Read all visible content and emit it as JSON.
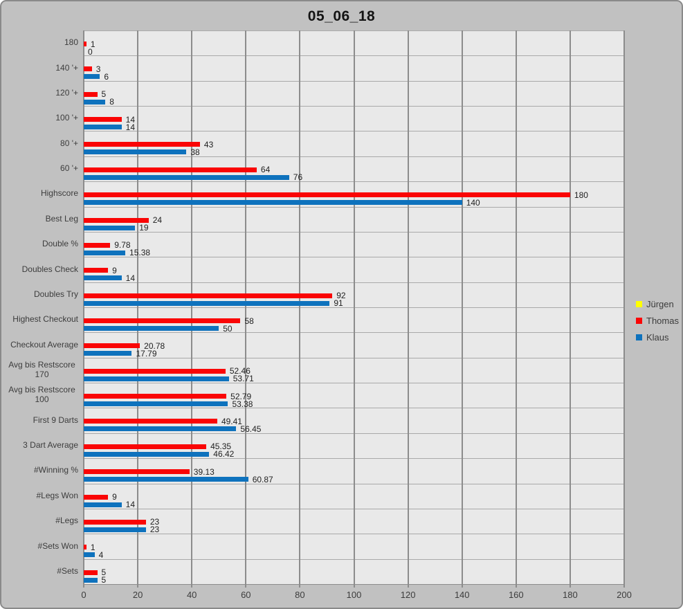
{
  "chart_data": {
    "type": "bar",
    "orientation": "horizontal",
    "title": "05_06_18",
    "categories": [
      "180",
      "140 '+",
      "120 '+",
      "100 '+",
      "80 '+",
      "60 '+",
      "Highscore",
      "Best Leg",
      "Double %",
      "Doubles Check",
      "Doubles Try",
      "Highest Checkout",
      "Checkout Average",
      "Avg bis Restscore\n170",
      "Avg bis Restscore\n100",
      "First 9 Darts",
      "3 Dart Average",
      "#Winning %",
      "#Legs Won",
      "#Legs",
      "#Sets Won",
      "#Sets"
    ],
    "series": [
      {
        "name": "Jürgen",
        "color": "#FFFF00",
        "values": [
          null,
          null,
          null,
          null,
          null,
          null,
          null,
          null,
          null,
          null,
          null,
          null,
          null,
          null,
          null,
          null,
          null,
          null,
          null,
          null,
          null,
          null
        ],
        "labels": []
      },
      {
        "name": "Thomas",
        "color": "#FA0505",
        "values": [
          1,
          3,
          5,
          14,
          43,
          64,
          180,
          24,
          9.78,
          9,
          92,
          58,
          20.78,
          52.46,
          52.79,
          49.41,
          45.35,
          39.13,
          9,
          23,
          1,
          5
        ],
        "labels": [
          "1",
          "3",
          "5",
          "14",
          "43",
          "64",
          "180",
          "24",
          "9.78",
          "9",
          "92",
          "58",
          "20.78",
          "52.46",
          "52.79",
          "49.41",
          "45.35",
          "39.13",
          "9",
          "23",
          "1",
          "5"
        ]
      },
      {
        "name": "Klaus",
        "color": "#0E72BD",
        "values": [
          0,
          6,
          8,
          14,
          38,
          76,
          140,
          19,
          15.38,
          14,
          91,
          50,
          17.79,
          53.71,
          53.38,
          56.45,
          46.42,
          60.87,
          14,
          23,
          4,
          5
        ],
        "labels": [
          "0",
          "6",
          "8",
          "14",
          "38",
          "76",
          "140",
          "19",
          "15.38",
          "14",
          "91",
          "50",
          "17.79",
          "53.71",
          "53.38",
          "56.45",
          "46.42",
          "60.87",
          "14",
          "23",
          "4",
          "5"
        ]
      }
    ],
    "x_axis": {
      "min": 0,
      "max": 200,
      "step": 20,
      "tick_labels": [
        "0",
        "20",
        "40",
        "60",
        "80",
        "100",
        "120",
        "140",
        "160",
        "180",
        "200"
      ]
    },
    "legend": {
      "position": "right",
      "entries": [
        "Jürgen",
        "Thomas",
        "Klaus"
      ]
    },
    "grid": true,
    "plot_background": "#e9e9e9",
    "chart_background": "#c1c1c1"
  }
}
